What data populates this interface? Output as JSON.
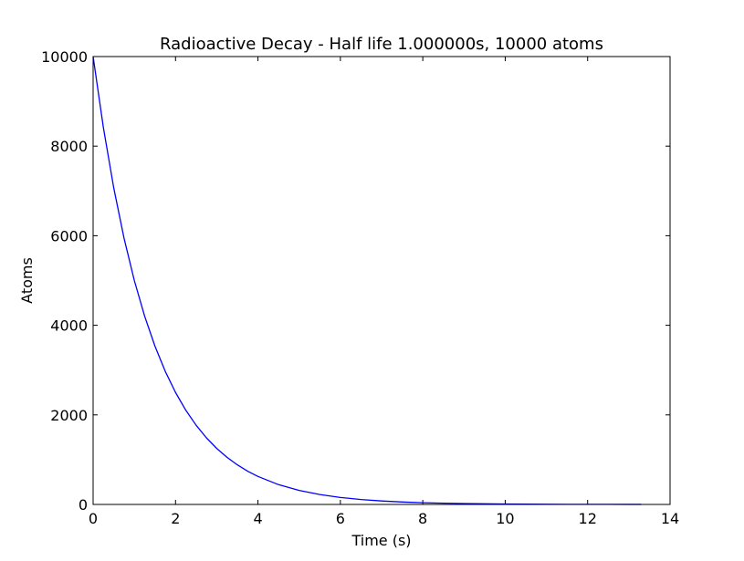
{
  "chart_data": {
    "type": "line",
    "title": "Radioactive Decay - Half life 1.000000s, 10000 atoms",
    "xlabel": "Time (s)",
    "ylabel": "Atoms",
    "xlim": [
      0,
      14
    ],
    "ylim": [
      0,
      10000
    ],
    "x_ticks": [
      "0",
      "2",
      "4",
      "6",
      "8",
      "10",
      "12",
      "14"
    ],
    "y_ticks": [
      "0",
      "2000",
      "4000",
      "6000",
      "8000",
      "10000"
    ],
    "grid": false,
    "series": [
      {
        "color": "#0000ff",
        "x": [
          0,
          0.25,
          0.5,
          0.75,
          1,
          1.25,
          1.5,
          1.75,
          2,
          2.25,
          2.5,
          2.75,
          3,
          3.25,
          3.5,
          3.75,
          4,
          4.5,
          5,
          5.5,
          6,
          6.5,
          7,
          7.5,
          8,
          8.5,
          9,
          9.5,
          10,
          10.5,
          11,
          11.5,
          12,
          12.5,
          13,
          13.3
        ],
        "y": [
          10000,
          8409,
          7071,
          5946,
          5000,
          4204,
          3536,
          2973,
          2500,
          2102,
          1768,
          1487,
          1250,
          1051,
          884,
          743,
          625,
          442,
          313,
          221,
          156,
          110,
          78,
          55,
          39,
          28,
          20,
          14,
          10,
          7,
          5,
          3,
          2,
          2,
          1,
          1
        ]
      }
    ]
  }
}
